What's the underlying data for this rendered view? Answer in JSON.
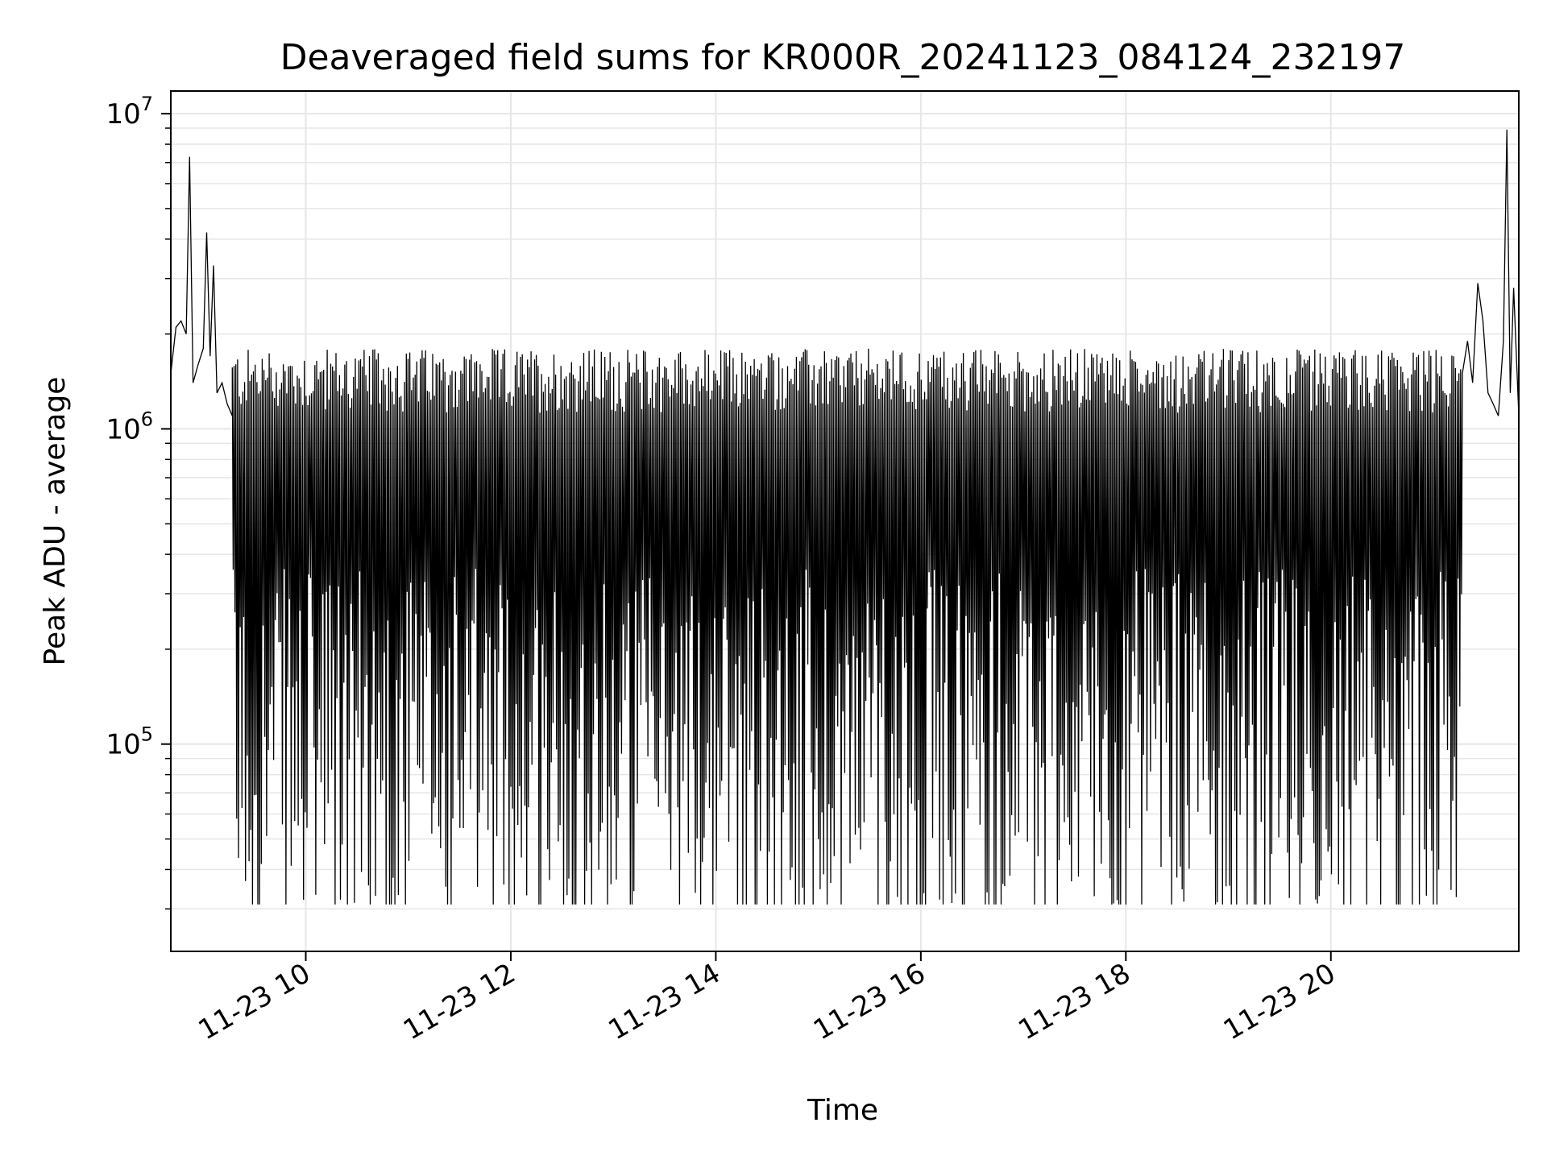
{
  "chart_data": {
    "type": "line",
    "title": "Deaveraged field sums for KR000R_20241123_084124_232197",
    "xlabel": "Time",
    "ylabel": "Peak ADU - average",
    "yscale": "log",
    "ylim": [
      22000,
      11800000
    ],
    "xlim": [
      "2024-11-23 08:41",
      "2024-11-23 21:50"
    ],
    "grid": true,
    "colors": {
      "line": "#000000",
      "grid": "#e6e6e6",
      "axes": "#000000"
    },
    "x_ticks": [
      {
        "value": "2024-11-23 10:00",
        "label": "11-23 10"
      },
      {
        "value": "2024-11-23 12:00",
        "label": "11-23 12"
      },
      {
        "value": "2024-11-23 14:00",
        "label": "11-23 14"
      },
      {
        "value": "2024-11-23 16:00",
        "label": "11-23 16"
      },
      {
        "value": "2024-11-23 18:00",
        "label": "11-23 18"
      },
      {
        "value": "2024-11-23 20:00",
        "label": "11-23 20"
      }
    ],
    "y_ticks": [
      {
        "value": 100000,
        "base": "10",
        "exp": "5"
      },
      {
        "value": 1000000,
        "base": "10",
        "exp": "6"
      },
      {
        "value": 10000000,
        "base": "10",
        "exp": "7"
      }
    ],
    "series": [
      {
        "values_note_free": true,
        "points": [
          [
            "2024-11-23 08:41",
            1500000
          ],
          [
            "2024-11-23 08:44",
            2100000
          ],
          [
            "2024-11-23 08:47",
            2200000
          ],
          [
            "2024-11-23 08:50",
            2000000
          ],
          [
            "2024-11-23 08:52",
            7300000
          ],
          [
            "2024-11-23 08:54",
            1400000
          ],
          [
            "2024-11-23 08:57",
            1600000
          ],
          [
            "2024-11-23 09:00",
            1800000
          ],
          [
            "2024-11-23 09:02",
            4200000
          ],
          [
            "2024-11-23 09:04",
            1700000
          ],
          [
            "2024-11-23 09:06",
            3300000
          ],
          [
            "2024-11-23 09:08",
            1300000
          ],
          [
            "2024-11-23 09:11",
            1400000
          ],
          [
            "2024-11-23 09:14",
            1200000
          ],
          [
            "2024-11-23 09:17",
            1100000
          ],
          [
            "2024-11-23 21:17",
            1500000
          ],
          [
            "2024-11-23 21:20",
            1900000
          ],
          [
            "2024-11-23 21:23",
            1400000
          ],
          [
            "2024-11-23 21:26",
            2900000
          ],
          [
            "2024-11-23 21:29",
            2200000
          ],
          [
            "2024-11-23 21:32",
            1300000
          ],
          [
            "2024-11-23 21:35",
            1200000
          ],
          [
            "2024-11-23 21:38",
            1100000
          ],
          [
            "2024-11-23 21:41",
            1900000
          ],
          [
            "2024-11-23 21:43",
            8900000
          ],
          [
            "2024-11-23 21:45",
            1300000
          ],
          [
            "2024-11-23 21:47",
            2800000
          ],
          [
            "2024-11-23 21:50",
            1100000
          ]
        ],
        "oscillation_band": {
          "start": "2024-11-23 09:17",
          "end": "2024-11-23 21:17",
          "high": 1500000,
          "low": 60000,
          "min": 31000
        }
      }
    ]
  }
}
